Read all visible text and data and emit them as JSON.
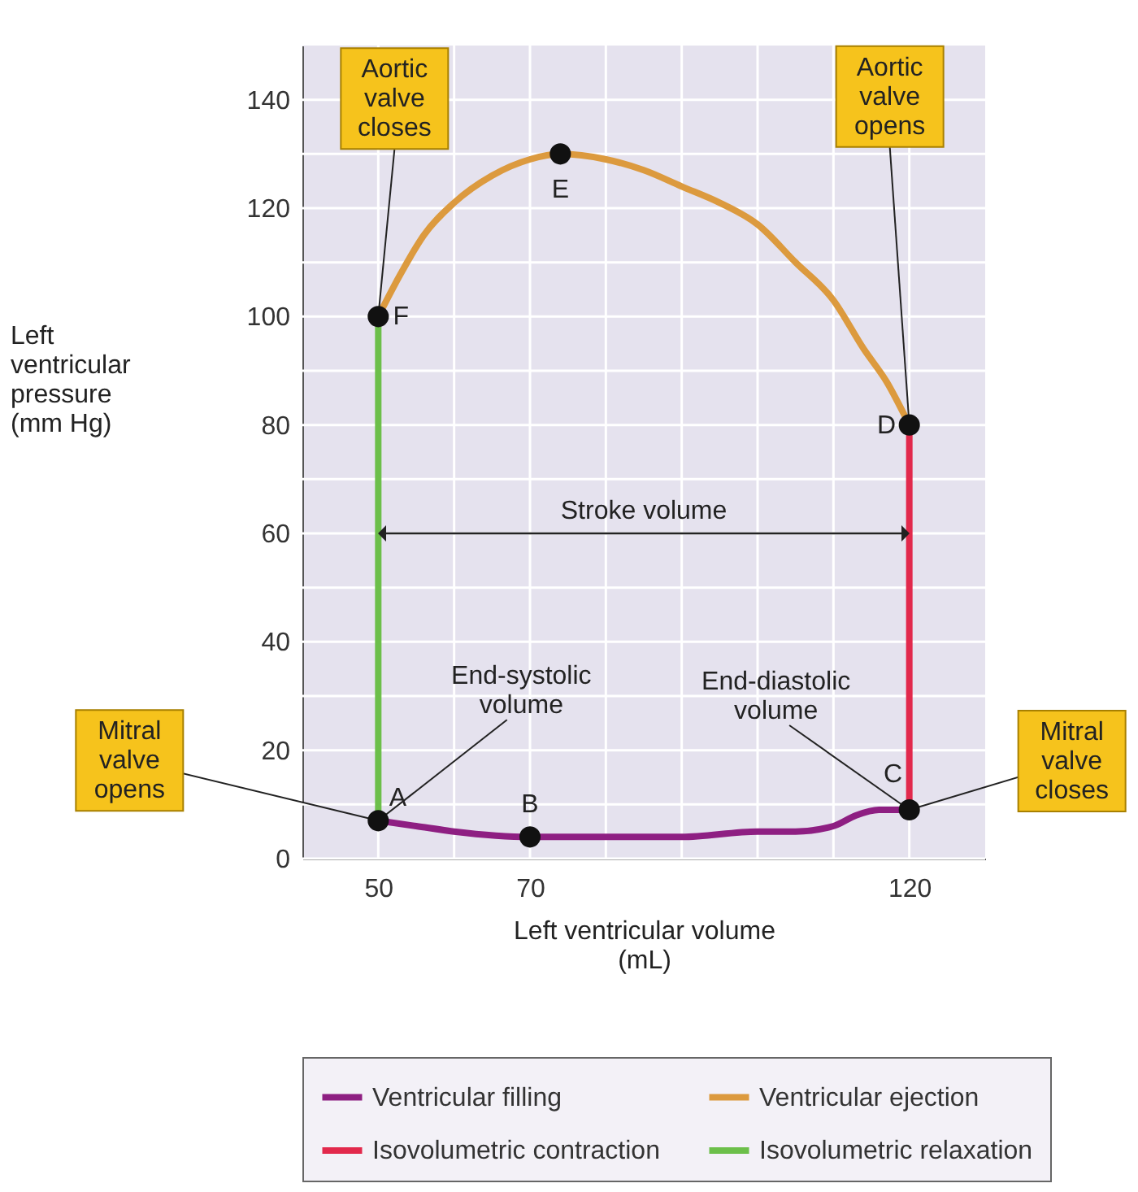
{
  "chart_data": {
    "type": "line",
    "xlabel": "Left ventricular volume (mL)",
    "ylabel": "Left ventricular pressure (mm Hg)",
    "xlim": [
      40,
      130
    ],
    "xticks": [
      50,
      {
        "value": 60,
        "label": null
      },
      70,
      {
        "value": 80,
        "label": null
      },
      {
        "value": 90,
        "label": null
      },
      {
        "value": 100,
        "label": null
      },
      {
        "value": 110,
        "label": null
      },
      120
    ],
    "ylim": [
      0,
      150
    ],
    "yticks": [
      0,
      {
        "value": 10,
        "label": null
      },
      20,
      {
        "value": 30,
        "label": null
      },
      40,
      {
        "value": 50,
        "label": null
      },
      60,
      {
        "value": 70,
        "label": null
      },
      80,
      {
        "value": 90,
        "label": null
      },
      100,
      {
        "value": 110,
        "label": null
      },
      120,
      {
        "value": 130,
        "label": null
      },
      140
    ],
    "grid": true,
    "legend": "bottom",
    "line_style": "solid",
    "series": [
      {
        "name": "Ventricular filling",
        "color": "#8e1f82",
        "x": [
          50,
          55,
          60,
          70,
          80,
          90,
          100,
          105,
          110,
          113,
          116,
          120
        ],
        "values": [
          7,
          6,
          5,
          4,
          4,
          4,
          5,
          5,
          6,
          8,
          9,
          9
        ]
      },
      {
        "name": "Ventricular ejection",
        "color": "#dc9a3e",
        "x": [
          120,
          117,
          114,
          110,
          105,
          100,
          95,
          90,
          85,
          80,
          74,
          70,
          65,
          60,
          56,
          53,
          50
        ],
        "values": [
          80,
          88,
          94,
          103,
          110,
          117,
          121,
          124,
          127,
          129,
          130,
          129,
          126,
          121,
          115,
          108,
          100
        ]
      },
      {
        "name": "Isovolumetric contraction",
        "color": "#e2294c",
        "x": [
          120,
          120
        ],
        "values": [
          9,
          80
        ]
      },
      {
        "name": "Isovolumetric relaxation",
        "color": "#6cbf4a",
        "x": [
          50,
          50
        ],
        "values": [
          100,
          7
        ]
      },
      {
        "type": "scatter",
        "marker": "circle",
        "color": "#111111",
        "x": [
          50,
          70,
          120,
          120,
          74,
          50
        ],
        "values": [
          7,
          4,
          9,
          80,
          130,
          100
        ]
      }
    ],
    "annotations": [
      {
        "text": "Aortic valve closes",
        "x": 50,
        "y": 100
      },
      {
        "text": "Aortic valve opens",
        "x": 120,
        "y": 80
      },
      {
        "text": "Mitral valve opens",
        "x": 50,
        "y": 7
      },
      {
        "text": "Mitral valve closes",
        "x": 120,
        "y": 9
      },
      {
        "text": "End-systolic volume",
        "x": 50,
        "y": 7
      },
      {
        "text": "End-diastolic volume",
        "x": 120,
        "y": 9
      },
      "Stroke volume",
      {
        "text": "A",
        "x": 50,
        "y": 7
      },
      {
        "text": "B",
        "x": 70,
        "y": 4
      },
      {
        "text": "C",
        "x": 120,
        "y": 9
      },
      {
        "text": "D",
        "x": 120,
        "y": 80
      },
      {
        "text": "E",
        "x": 74,
        "y": 130
      },
      {
        "text": "F",
        "x": 50,
        "y": 100
      }
    ]
  }
}
